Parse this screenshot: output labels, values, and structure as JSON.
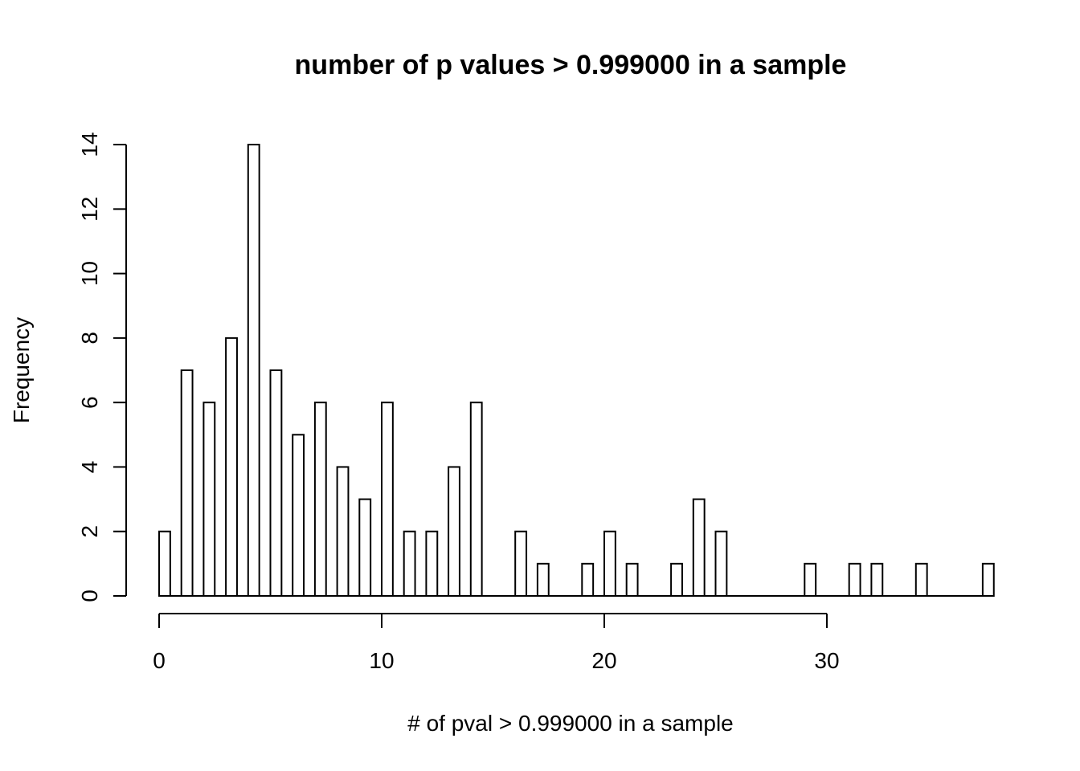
{
  "chart_data": {
    "type": "bar",
    "title": "number of p values > 0.999000 in a sample",
    "xlabel": "# of pval > 0.999000 in a sample",
    "ylabel": "Frequency",
    "bin_width": 0.5,
    "bins": [
      {
        "x": 0,
        "value": 2
      },
      {
        "x": 1,
        "value": 7
      },
      {
        "x": 2,
        "value": 6
      },
      {
        "x": 3,
        "value": 8
      },
      {
        "x": 4,
        "value": 14
      },
      {
        "x": 5,
        "value": 7
      },
      {
        "x": 6,
        "value": 5
      },
      {
        "x": 7,
        "value": 6
      },
      {
        "x": 8,
        "value": 4
      },
      {
        "x": 9,
        "value": 3
      },
      {
        "x": 10,
        "value": 6
      },
      {
        "x": 11,
        "value": 2
      },
      {
        "x": 12,
        "value": 2
      },
      {
        "x": 13,
        "value": 4
      },
      {
        "x": 14,
        "value": 6
      },
      {
        "x": 16,
        "value": 2
      },
      {
        "x": 17,
        "value": 1
      },
      {
        "x": 19,
        "value": 1
      },
      {
        "x": 20,
        "value": 2
      },
      {
        "x": 21,
        "value": 1
      },
      {
        "x": 23,
        "value": 1
      },
      {
        "x": 24,
        "value": 3
      },
      {
        "x": 25,
        "value": 2
      },
      {
        "x": 29,
        "value": 1
      },
      {
        "x": 31,
        "value": 1
      },
      {
        "x": 32,
        "value": 1
      },
      {
        "x": 34,
        "value": 1
      },
      {
        "x": 37,
        "value": 1
      }
    ],
    "xlim": [
      0,
      37
    ],
    "ylim": [
      0,
      14
    ],
    "x_ticks": [
      0,
      10,
      20,
      30
    ],
    "y_ticks": [
      0,
      2,
      4,
      6,
      8,
      10,
      12,
      14
    ],
    "grid": false,
    "legend": "none"
  }
}
